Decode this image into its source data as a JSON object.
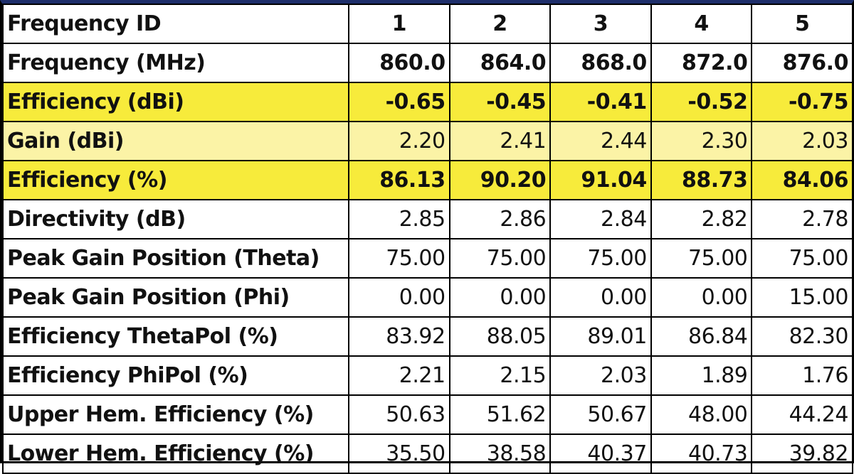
{
  "table": {
    "header": {
      "label": "Frequency ID",
      "values": [
        "1",
        "2",
        "3",
        "4",
        "5"
      ]
    },
    "rows": [
      {
        "label": "Frequency  (MHz)",
        "values": [
          "860.0",
          "864.0",
          "868.0",
          "872.0",
          "876.0"
        ]
      },
      {
        "label": "Efficiency (dBi)",
        "values": [
          "-0.65",
          "-0.45",
          "-0.41",
          "-0.52",
          "-0.75"
        ]
      },
      {
        "label": "Gain (dBi)",
        "values": [
          "2.20",
          "2.41",
          "2.44",
          "2.30",
          "2.03"
        ]
      },
      {
        "label": "Efficiency (%)",
        "values": [
          "86.13",
          "90.20",
          "91.04",
          "88.73",
          "84.06"
        ]
      },
      {
        "label": "Directivity (dB)",
        "values": [
          "2.85",
          "2.86",
          "2.84",
          "2.82",
          "2.78"
        ]
      },
      {
        "label": "Peak Gain Position (Theta)",
        "values": [
          "75.00",
          "75.00",
          "75.00",
          "75.00",
          "75.00"
        ]
      },
      {
        "label": "Peak Gain Position (Phi)",
        "values": [
          "0.00",
          "0.00",
          "0.00",
          "0.00",
          "15.00"
        ]
      },
      {
        "label": "Efficiency ThetaPol (%)",
        "values": [
          "83.92",
          "88.05",
          "89.01",
          "86.84",
          "82.30"
        ]
      },
      {
        "label": "Efficiency PhiPol (%)",
        "values": [
          "2.21",
          "2.15",
          "2.03",
          "1.89",
          "1.76"
        ]
      },
      {
        "label": "Upper Hem. Efficiency (%)",
        "values": [
          "50.63",
          "51.62",
          "50.67",
          "48.00",
          "44.24"
        ]
      },
      {
        "label": "Lower Hem. Efficiency (%)",
        "values": [
          "35.50",
          "38.58",
          "40.37",
          "40.73",
          "39.82"
        ]
      }
    ]
  },
  "colors": {
    "highlight_strong": "#f7eb3b",
    "highlight_light": "#fbf3a6",
    "top_border": "#1f2f6b"
  }
}
